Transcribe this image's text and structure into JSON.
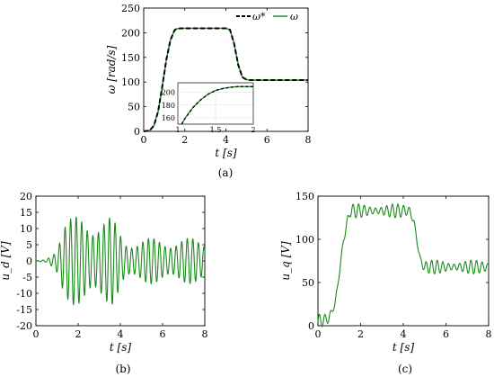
{
  "chart_data": [
    {
      "panel": "(a)",
      "type": "line",
      "xlabel": "t [s]",
      "ylabel": "ω [rad/s]",
      "xlim": [
        0,
        8
      ],
      "ylim": [
        0,
        250
      ],
      "xticks": [
        "0",
        "2",
        "4",
        "6",
        "8"
      ],
      "yticks": [
        "0",
        "50",
        "100",
        "150",
        "200",
        "250"
      ],
      "legend": {
        "placement": "top-right",
        "entries": [
          "ω*",
          "ω"
        ]
      },
      "series": [
        {
          "name": "ω*",
          "style": "dashed",
          "color": "#000000",
          "x": [
            0,
            0.3,
            0.5,
            0.7,
            0.9,
            1.1,
            1.3,
            1.5,
            1.6,
            1.8,
            2.0,
            3.0,
            4.0,
            4.2,
            4.4,
            4.6,
            4.8,
            5.0,
            5.2,
            6.0,
            7.0,
            8.0
          ],
          "y": [
            0,
            2,
            12,
            40,
            90,
            145,
            185,
            205,
            208,
            209,
            209,
            209,
            209,
            206,
            178,
            135,
            110,
            105,
            104,
            104,
            104,
            104
          ]
        },
        {
          "name": "ω",
          "style": "solid",
          "color": "#1a8a1a",
          "x": [
            0,
            0.3,
            0.5,
            0.7,
            0.9,
            1.1,
            1.3,
            1.5,
            1.6,
            1.8,
            2.0,
            3.0,
            4.0,
            4.2,
            4.4,
            4.6,
            4.8,
            5.0,
            5.2,
            6.0,
            7.0,
            8.0
          ],
          "y": [
            0,
            2,
            12,
            40,
            90,
            145,
            185,
            205,
            208,
            209,
            209,
            209,
            209,
            206,
            178,
            135,
            110,
            105,
            104,
            104,
            104,
            104
          ]
        }
      ],
      "inset": {
        "xlim": [
          1,
          2
        ],
        "ylim": [
          150,
          215
        ],
        "xticks": [
          "1",
          "1.5",
          "2"
        ],
        "yticks": [
          "160",
          "180",
          "200"
        ],
        "x": [
          1.05,
          1.1,
          1.2,
          1.3,
          1.4,
          1.5,
          1.6,
          1.7,
          1.8,
          1.9,
          2.0
        ],
        "y": [
          150,
          160,
          176,
          188,
          197,
          203,
          206,
          208,
          209,
          209,
          209
        ]
      }
    },
    {
      "panel": "(b)",
      "type": "line",
      "xlabel": "t [s]",
      "ylabel": "u_d [V]",
      "xlim": [
        0,
        8
      ],
      "ylim": [
        -20,
        20
      ],
      "xticks": [
        "0",
        "2",
        "4",
        "6",
        "8"
      ],
      "yticks": [
        "-20",
        "-15",
        "-10",
        "-5",
        "0",
        "5",
        "10",
        "15",
        "20"
      ],
      "series": [
        {
          "name": "",
          "color": "#1a8a1a",
          "envelope": {
            "t": [
              0,
              0.5,
              0.9,
              1.3,
              2.2,
              3.0,
              3.6,
              4.2,
              4.6,
              5.0,
              6.0,
              7.0,
              8.0
            ],
            "a": [
              0,
              0.5,
              4,
              13,
              14,
              14,
              13.5,
              7,
              7,
              7,
              7,
              7,
              7
            ]
          },
          "frequency_hz": 3.8,
          "offset": 0
        }
      ]
    },
    {
      "panel": "(c)",
      "type": "line",
      "xlabel": "t [s]",
      "ylabel": "u_q [V]",
      "xlim": [
        0,
        8
      ],
      "ylim": [
        0,
        150
      ],
      "xticks": [
        "0",
        "2",
        "4",
        "6",
        "8"
      ],
      "yticks": [
        "0",
        "50",
        "100",
        "150"
      ],
      "series": [
        {
          "name": "",
          "color": "#1a8a1a",
          "baseline": {
            "t": [
              0,
              0.5,
              0.8,
              1.0,
              1.2,
              1.5,
              4.3,
              4.5,
              4.8,
              5.0,
              8.0
            ],
            "v": [
              5,
              8,
              25,
              60,
              100,
              133,
              133,
              120,
              75,
              68,
              68
            ]
          },
          "ripple": {
            "t": [
              0,
              1.0,
              1.5,
              4.3,
              4.6,
              8.0
            ],
            "a": [
              8,
              6,
              8,
              8,
              8,
              8
            ]
          },
          "frequency_hz": 3.8
        }
      ]
    }
  ],
  "captions": {
    "a": "(a)",
    "b": "(b)",
    "c": "(c)"
  }
}
